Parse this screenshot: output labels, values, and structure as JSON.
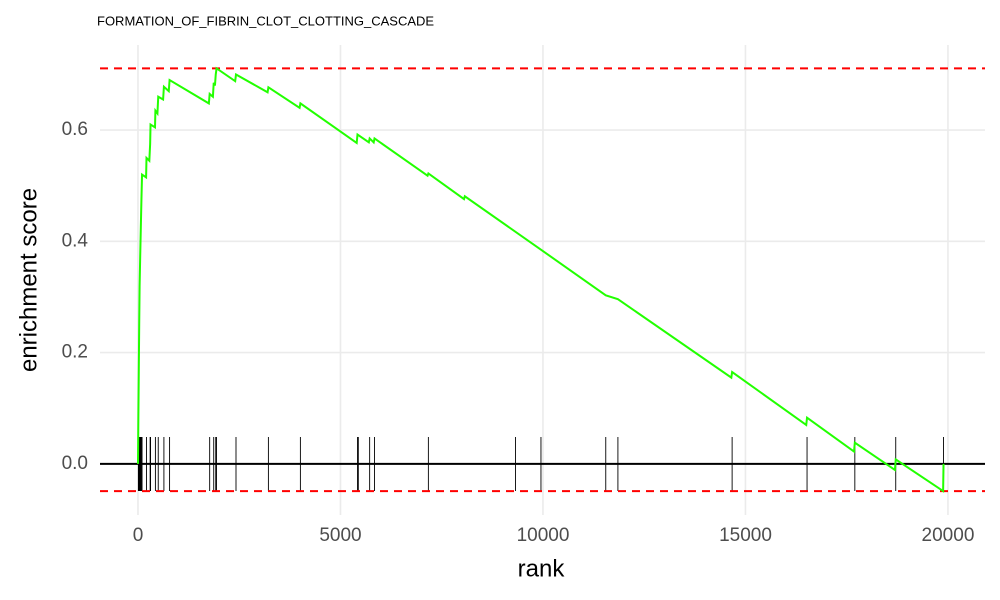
{
  "chart_data": {
    "type": "line",
    "title": "FORMATION_OF_FIBRIN_CLOT_CLOTTING_CASCADE",
    "x_label": "rank",
    "y_label": "enrichment score",
    "x": [
      0,
      10,
      20,
      30,
      40,
      55,
      70,
      85,
      100,
      200,
      210,
      280,
      300,
      310,
      420,
      430,
      480,
      500,
      620,
      640,
      760,
      780,
      1750,
      1770,
      1850,
      1870,
      1900,
      1920,
      1940,
      2400,
      2420,
      3200,
      3220,
      3990,
      4010,
      5400,
      5420,
      5700,
      5720,
      5820,
      5840,
      7150,
      7170,
      8050,
      8070,
      9950,
      11550,
      11850,
      14650,
      14670,
      16500,
      16520,
      17680,
      17700,
      18690,
      18710,
      19880,
      19890
    ],
    "series": [
      {
        "color": "#22ff00",
        "values": [
          0.0,
          0.09,
          0.17,
          0.25,
          0.32,
          0.375,
          0.425,
          0.475,
          0.52,
          0.515,
          0.55,
          0.545,
          0.575,
          0.61,
          0.605,
          0.635,
          0.63,
          0.66,
          0.655,
          0.678,
          0.67,
          0.69,
          0.648,
          0.665,
          0.66,
          0.685,
          0.68,
          0.7,
          0.711,
          0.688,
          0.7,
          0.668,
          0.677,
          0.64,
          0.648,
          0.577,
          0.592,
          0.578,
          0.585,
          0.578,
          0.585,
          0.518,
          0.522,
          0.476,
          0.481,
          0.385,
          0.303,
          0.296,
          0.155,
          0.165,
          0.07,
          0.083,
          0.022,
          0.038,
          -0.011,
          0.008,
          -0.049,
          0.0
        ]
      }
    ],
    "hits": [
      10,
      20,
      30,
      40,
      55,
      70,
      85,
      100,
      210,
      300,
      310,
      430,
      500,
      640,
      780,
      1770,
      1870,
      1920,
      1940,
      2420,
      3220,
      4010,
      5420,
      5440,
      5720,
      5840,
      7170,
      9320,
      9950,
      11550,
      11850,
      14670,
      16520,
      17700,
      18710,
      19890
    ],
    "reference_lines": [
      {
        "value": 0.711,
        "color": "#ff0000"
      },
      {
        "value": -0.049,
        "color": "#ff0000"
      }
    ],
    "zero_line": 0,
    "xlim": [
      -938,
      20914
    ],
    "ylim": [
      -0.092,
      0.753
    ],
    "xticks": [
      0,
      5000,
      10000,
      15000,
      20000
    ],
    "yticks": [
      {
        "value": 0,
        "label": "0.0"
      },
      {
        "value": 0.2,
        "label": "0.2"
      },
      {
        "value": 0.4,
        "label": "0.4"
      },
      {
        "value": 0.6,
        "label": "0.6"
      }
    ],
    "grid": true
  }
}
